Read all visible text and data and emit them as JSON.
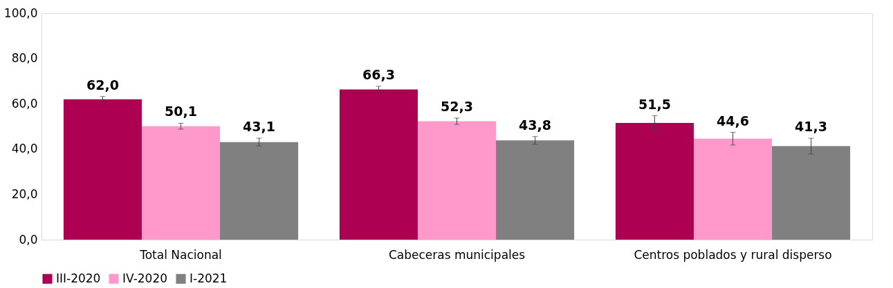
{
  "chart_data": {
    "type": "bar",
    "categories": [
      "Total Nacional",
      "Cabeceras municipales",
      "Centros poblados y rural disperso"
    ],
    "series": [
      {
        "name": "III-2020",
        "color": "#ad0052",
        "values": [
          62.0,
          66.3,
          51.5
        ],
        "errors": [
          1.2,
          1.4,
          3.2
        ],
        "value_labels": [
          "62,0",
          "66,3",
          "51,5"
        ]
      },
      {
        "name": "IV-2020",
        "color": "#ff99cc",
        "values": [
          50.1,
          52.3,
          44.6
        ],
        "errors": [
          1.3,
          1.4,
          2.8
        ],
        "value_labels": [
          "50,1",
          "52,3",
          "44,6"
        ]
      },
      {
        "name": "I-2021",
        "color": "#808080",
        "values": [
          43.1,
          43.8,
          41.3
        ],
        "errors": [
          1.7,
          1.7,
          3.5
        ],
        "value_labels": [
          "43,1",
          "43,8",
          "41,3"
        ]
      }
    ],
    "ylim": [
      0,
      100
    ],
    "yticks": [
      {
        "value": 0,
        "label": "0,0"
      },
      {
        "value": 20,
        "label": "20,0"
      },
      {
        "value": 40,
        "label": "40,0"
      },
      {
        "value": 60,
        "label": "60,0"
      },
      {
        "value": 80,
        "label": "80,0"
      },
      {
        "value": 100,
        "label": "100,0"
      }
    ],
    "grid": false,
    "legend": "bottom"
  }
}
